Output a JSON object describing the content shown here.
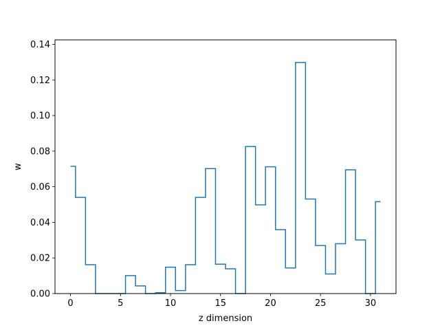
{
  "chart_data": {
    "type": "line",
    "drawstyle": "steps-mid",
    "title": "",
    "xlabel": "z dimension",
    "ylabel": "w",
    "xlim": [
      -1.55,
      32.55
    ],
    "ylim": [
      0,
      0.1425
    ],
    "xticks": [
      0,
      5,
      10,
      15,
      20,
      25,
      30
    ],
    "yticks": [
      0.0,
      0.02,
      0.04,
      0.06,
      0.08,
      0.1,
      0.12,
      0.14
    ],
    "ytick_labels": [
      "0.00",
      "0.02",
      "0.04",
      "0.06",
      "0.08",
      "0.10",
      "0.12",
      "0.14"
    ],
    "grid": false,
    "series": [
      {
        "color": "#1f77b4",
        "x": [
          0,
          1,
          2,
          3,
          4,
          5,
          6,
          7,
          8,
          9,
          10,
          11,
          12,
          13,
          14,
          15,
          16,
          17,
          18,
          19,
          20,
          21,
          22,
          23,
          24,
          25,
          26,
          27,
          28,
          29,
          30,
          31
        ],
        "values": [
          0.0715,
          0.054,
          0.0162,
          0.0,
          0.0,
          0.0,
          0.0101,
          0.0043,
          0.0,
          0.0005,
          0.0148,
          0.0017,
          0.0162,
          0.054,
          0.0702,
          0.0165,
          0.0139,
          0.0,
          0.0826,
          0.0498,
          0.0712,
          0.0359,
          0.0144,
          0.1298,
          0.0531,
          0.027,
          0.011,
          0.028,
          0.0695,
          0.0301,
          0.0,
          0.0516
        ]
      }
    ]
  }
}
